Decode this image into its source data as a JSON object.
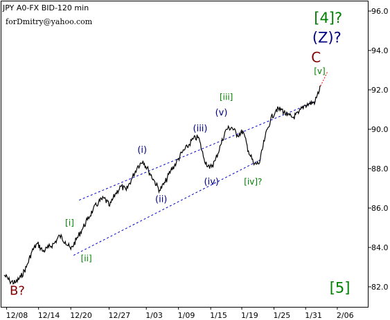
{
  "chart_data": {
    "type": "line",
    "title": "JPY A0-FX BID-120 min",
    "watermark": "forDmitry@yahoo.com",
    "ylim": [
      81.0,
      97.0
    ],
    "y_ticks": [
      82.0,
      84.0,
      86.0,
      88.0,
      90.0,
      92.0,
      94.0,
      96.0
    ],
    "y_tick_labels": [
      "82.0",
      "84.0",
      "86.0",
      "88.0",
      "90.0",
      "92.0",
      "94.0",
      "96.0"
    ],
    "x_ticks": [
      {
        "label": "12/08",
        "t": 0.45
      },
      {
        "label": "12/14",
        "t": 6.2
      },
      {
        "label": "12/20",
        "t": 12.0
      },
      {
        "label": "12/27",
        "t": 18.9
      },
      {
        "label": "1/03",
        "t": 25.6
      },
      {
        "label": "1/09",
        "t": 31.4
      },
      {
        "label": "1/15",
        "t": 37.2
      },
      {
        "label": "1/19",
        "t": 42.8
      },
      {
        "label": "1/25",
        "t": 48.6
      },
      {
        "label": "1/31",
        "t": 54.3
      },
      {
        "label": "2/06",
        "t": 60.0
      }
    ],
    "xlim": [
      -0.5,
      65.5
    ],
    "series": [
      {
        "color": "#000000",
        "points": [
          [
            0.0,
            82.6
          ],
          [
            1.0,
            82.3
          ],
          [
            2.0,
            82.2
          ],
          [
            3.0,
            82.5
          ],
          [
            4.0,
            83.0
          ],
          [
            5.0,
            83.8
          ],
          [
            6.0,
            84.2
          ],
          [
            7.0,
            83.8
          ],
          [
            8.0,
            84.0
          ],
          [
            9.0,
            84.2
          ],
          [
            10.0,
            84.6
          ],
          [
            11.0,
            84.3
          ],
          [
            12.0,
            83.9
          ],
          [
            13.0,
            84.4
          ],
          [
            14.0,
            84.9
          ],
          [
            15.0,
            85.4
          ],
          [
            16.0,
            85.9
          ],
          [
            17.0,
            86.3
          ],
          [
            18.0,
            86.5
          ],
          [
            19.0,
            86.1
          ],
          [
            20.0,
            86.7
          ],
          [
            21.0,
            87.1
          ],
          [
            22.0,
            86.9
          ],
          [
            23.0,
            87.5
          ],
          [
            24.0,
            88.1
          ],
          [
            25.0,
            88.4
          ],
          [
            26.0,
            87.9
          ],
          [
            27.0,
            87.4
          ],
          [
            28.0,
            86.9
          ],
          [
            29.0,
            87.3
          ],
          [
            30.0,
            87.9
          ],
          [
            31.0,
            88.3
          ],
          [
            32.0,
            88.8
          ],
          [
            33.0,
            89.1
          ],
          [
            34.0,
            89.5
          ],
          [
            35.0,
            89.6
          ],
          [
            36.0,
            88.5
          ],
          [
            37.0,
            88.0
          ],
          [
            38.0,
            88.4
          ],
          [
            39.0,
            89.2
          ],
          [
            40.0,
            90.0
          ],
          [
            41.0,
            90.1
          ],
          [
            42.0,
            89.7
          ],
          [
            43.0,
            89.9
          ],
          [
            44.0,
            88.9
          ],
          [
            45.0,
            88.2
          ],
          [
            46.0,
            88.3
          ],
          [
            47.0,
            89.6
          ],
          [
            48.0,
            90.5
          ],
          [
            49.0,
            91.0
          ],
          [
            50.0,
            91.0
          ],
          [
            51.0,
            90.7
          ],
          [
            52.0,
            90.6
          ],
          [
            53.0,
            90.8
          ],
          [
            54.0,
            91.2
          ],
          [
            55.0,
            91.3
          ],
          [
            56.0,
            91.4
          ],
          [
            57.0,
            92.2
          ]
        ]
      }
    ],
    "projection": {
      "color": "#ff0000",
      "points": [
        [
          57.0,
          92.2
        ],
        [
          58.2,
          92.9
        ]
      ]
    },
    "channel_lines": [
      {
        "points": [
          [
            13.5,
            86.4
          ],
          [
            56.0,
            91.4
          ]
        ]
      },
      {
        "points": [
          [
            12.5,
            83.6
          ],
          [
            46.5,
            88.5
          ]
        ]
      }
    ],
    "annotations": [
      {
        "text": "B?",
        "t": 1.0,
        "y": 81.6,
        "color": "#800000",
        "size": 18
      },
      {
        "text": "[i]",
        "t": 11.0,
        "y": 85.1,
        "color": "#008000",
        "size": 12
      },
      {
        "text": "[ii]",
        "t": 13.8,
        "y": 83.3,
        "color": "#008000",
        "size": 12
      },
      {
        "text": "(i)",
        "t": 24.0,
        "y": 88.8,
        "color": "#000080",
        "size": 13
      },
      {
        "text": "(ii)",
        "t": 27.2,
        "y": 86.3,
        "color": "#000080",
        "size": 13
      },
      {
        "text": "(iii)",
        "t": 34.0,
        "y": 89.9,
        "color": "#000080",
        "size": 13
      },
      {
        "text": "(iv)",
        "t": 36.0,
        "y": 87.2,
        "color": "#000080",
        "size": 13
      },
      {
        "text": "[iii]",
        "t": 38.8,
        "y": 91.5,
        "color": "#008000",
        "size": 12
      },
      {
        "text": "(v)",
        "t": 38.0,
        "y": 90.7,
        "color": "#000080",
        "size": 13
      },
      {
        "text": "[iv]?",
        "t": 43.2,
        "y": 87.2,
        "color": "#008000",
        "size": 12
      },
      {
        "text": "[v]",
        "t": 55.8,
        "y": 92.8,
        "color": "#008000",
        "size": 12
      },
      {
        "text": "C",
        "t": 55.3,
        "y": 93.4,
        "color": "#800000",
        "size": 20
      },
      {
        "text": "(Z)?",
        "t": 55.5,
        "y": 94.4,
        "color": "#000080",
        "size": 21
      },
      {
        "text": "[4]?",
        "t": 55.8,
        "y": 95.4,
        "color": "#008000",
        "size": 21
      },
      {
        "text": "[5]",
        "t": 58.6,
        "y": 81.7,
        "color": "#008000",
        "size": 21
      }
    ]
  }
}
